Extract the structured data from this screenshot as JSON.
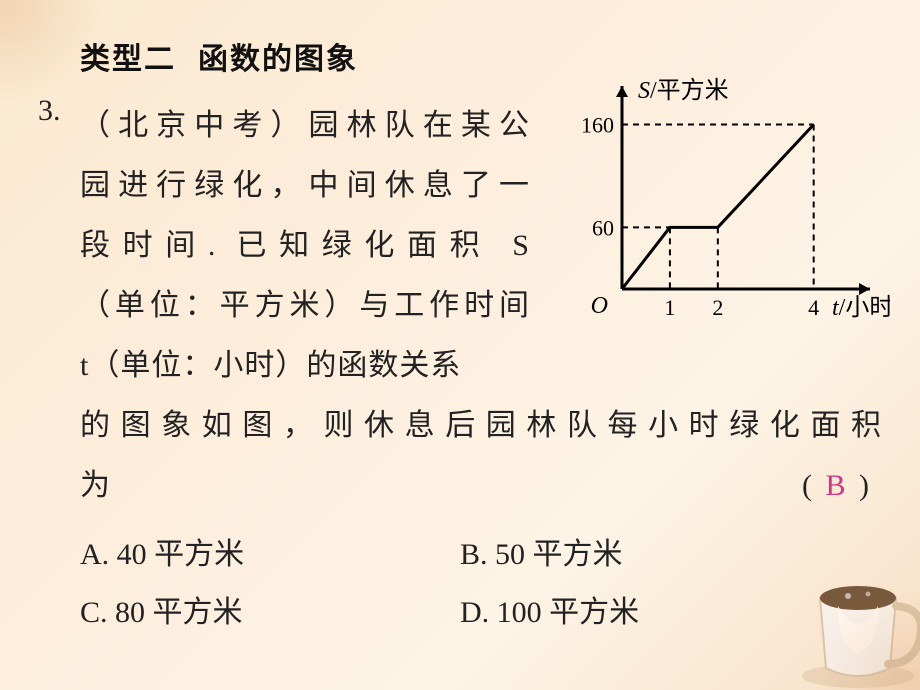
{
  "heading": {
    "left": "类型二",
    "right": "函数的图象"
  },
  "question": {
    "number": "3.",
    "source_prefix": "（北京中考）",
    "lines_narrow": [
      "（北京中考）园林队在某公",
      "园进行绿化，中间休息了一",
      "段时间. 已知绿化面积 S",
      "（单位：平方米）与工作时间",
      "t（单位：小时）的函数关系"
    ],
    "line_full": "的图象如图，则休息后园林队每小时绿化面积",
    "answer_word": "为",
    "answer_letter": "B"
  },
  "options": {
    "A": "A. 40 平方米",
    "B": "B. 50 平方米",
    "C": "C. 80 平方米",
    "D": "D. 100 平方米"
  },
  "chart": {
    "type": "line",
    "y_axis_label": "S/平方米",
    "x_axis_label": "t/小时",
    "origin_label": "O",
    "y_ticks": [
      60,
      160
    ],
    "x_ticks": [
      1,
      2,
      4
    ],
    "points": [
      {
        "t": 0,
        "S": 0
      },
      {
        "t": 1,
        "S": 60
      },
      {
        "t": 2,
        "S": 60
      },
      {
        "t": 4,
        "S": 160
      }
    ],
    "xlim": [
      0,
      4.8
    ],
    "ylim": [
      0,
      180
    ],
    "line_color": "#000000",
    "line_width": 3,
    "dash_color": "#000000",
    "dash_pattern": "6,5",
    "background_color": "transparent",
    "axis_color": "#000000",
    "axis_width": 3,
    "tick_fontsize": 22,
    "label_fontsize": 24
  },
  "colors": {
    "text": "#222222",
    "answer": "#d63384",
    "bg_grad_1": "#fbe9cf",
    "bg_grad_2": "#fdf4e6"
  }
}
